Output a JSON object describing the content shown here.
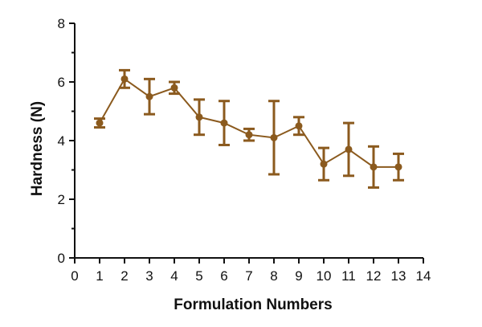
{
  "chart_data": {
    "type": "line",
    "xlabel": "Formulation Numbers",
    "ylabel": "Hardness (N)",
    "xlim": [
      0,
      14
    ],
    "ylim": [
      0,
      8
    ],
    "x_ticks": [
      "0",
      "1",
      "2",
      "3",
      "4",
      "5",
      "6",
      "7",
      "8",
      "9",
      "10",
      "11",
      "12",
      "13",
      "14"
    ],
    "y_ticks": [
      "0",
      "2",
      "4",
      "6",
      "8"
    ],
    "grid": false,
    "color": "#8B5A1E",
    "series": [
      {
        "x": [
          1,
          2,
          3,
          4,
          5,
          6,
          7,
          8,
          9,
          10,
          11,
          12,
          13
        ],
        "values": [
          4.6,
          6.1,
          5.5,
          5.8,
          4.8,
          4.6,
          4.2,
          4.1,
          4.5,
          3.2,
          3.7,
          3.1,
          3.1
        ],
        "error": [
          0.15,
          0.3,
          0.6,
          0.2,
          0.6,
          0.75,
          0.2,
          1.25,
          0.3,
          0.55,
          0.9,
          0.7,
          0.45
        ]
      }
    ]
  }
}
